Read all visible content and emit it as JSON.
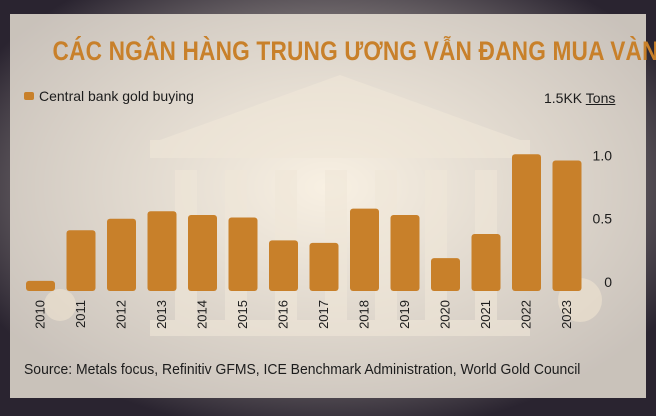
{
  "title": "CÁC NGÂN HÀNG TRUNG ƯƠNG VẪN ĐANG MUA VÀNG",
  "legend": {
    "label": "Central bank gold buying"
  },
  "units": {
    "prefix": "1.5KK",
    "label": "Tons"
  },
  "source": "Source: Metals focus, Refinitiv GFMS, ICE Benchmark Administration, World Gold Council",
  "colors": {
    "bar": "#c8802a",
    "title": "#c8802a",
    "text": "#1c1c1c"
  },
  "chart_data": {
    "type": "bar",
    "title": "CÁC NGÂN HÀNG TRUNG ƯƠNG VẪN ĐANG MUA VÀNG",
    "categories": [
      "2010",
      "2011",
      "2012",
      "2013",
      "2014",
      "2015",
      "2016",
      "2017",
      "2018",
      "2019",
      "2020",
      "2021",
      "2022",
      "2023"
    ],
    "series": [
      {
        "name": "Central bank gold buying",
        "values": [
          0.08,
          0.48,
          0.57,
          0.63,
          0.6,
          0.58,
          0.4,
          0.38,
          0.65,
          0.6,
          0.26,
          0.45,
          1.08,
          1.03
        ]
      }
    ],
    "ylabel": "Tons",
    "yticks": [
      "0",
      "0.5",
      "1.0"
    ],
    "ytick_values": [
      0,
      0.5,
      1.0
    ],
    "ylim": [
      0,
      1.5
    ],
    "grid": false,
    "legend_position": "top-left"
  }
}
